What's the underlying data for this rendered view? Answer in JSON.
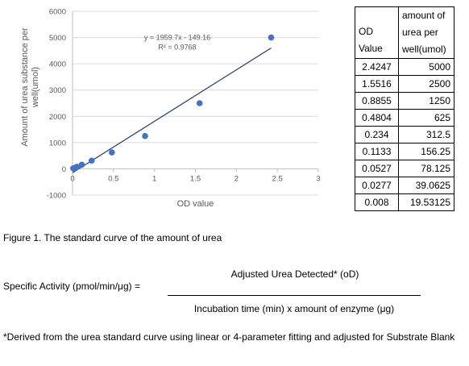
{
  "chart_data": {
    "type": "scatter",
    "xlabel": "OD value",
    "ylabel": "Amount of urea substance per well(umol)",
    "xlim": [
      0,
      3
    ],
    "ylim": [
      -1000,
      6000
    ],
    "x_ticks": [
      "0",
      "0.5",
      "1",
      "1.5",
      "2",
      "2.5",
      "3"
    ],
    "y_ticks": [
      "-1000",
      "0",
      "1000",
      "2000",
      "3000",
      "4000",
      "5000",
      "6000"
    ],
    "grid": "horizontal",
    "point_color": "#4472C4",
    "trendline_color": "#1F3864",
    "points": [
      {
        "x": 2.4247,
        "y": 5000
      },
      {
        "x": 1.5516,
        "y": 2500
      },
      {
        "x": 0.8855,
        "y": 1250
      },
      {
        "x": 0.4804,
        "y": 625
      },
      {
        "x": 0.234,
        "y": 312.5
      },
      {
        "x": 0.1133,
        "y": 156.25
      },
      {
        "x": 0.0527,
        "y": 78.125
      },
      {
        "x": 0.0277,
        "y": 39.0625
      },
      {
        "x": 0.008,
        "y": 19.53125
      }
    ],
    "trendline": {
      "slope": 1959.7,
      "intercept": -149.16,
      "x_range": [
        0,
        2.4247
      ]
    },
    "equation_label": "y = 1959.7x - 149.16",
    "r2_label": "R² = 0.9768"
  },
  "table": {
    "header_od": "OD Value",
    "header_amount": "amount of urea per well(umol)",
    "rows": [
      [
        "2.4247",
        "5000"
      ],
      [
        "1.5516",
        "2500"
      ],
      [
        "0.8855",
        "1250"
      ],
      [
        "0.4804",
        "625"
      ],
      [
        "0.234",
        "312.5"
      ],
      [
        "0.1133",
        "156.25"
      ],
      [
        "0.0527",
        "78.125"
      ],
      [
        "0.0277",
        "39.0625"
      ],
      [
        "0.008",
        "19.53125"
      ]
    ]
  },
  "caption": "Figure 1. The standard curve of the amount of urea",
  "formula": {
    "label": "Specific Activity (pmol/min/μg) =",
    "numerator": "Adjusted Urea Detected* (oD)",
    "denominator": "Incubation time (min) x amount of enzyme (μg)"
  },
  "footnote": "*Derived from the urea standard curve using linear or 4-parameter fitting and adjusted for Substrate Blank"
}
